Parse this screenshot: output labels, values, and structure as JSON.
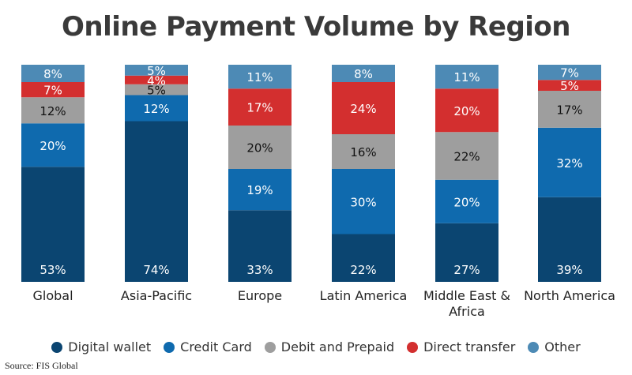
{
  "chart_data": {
    "type": "bar",
    "stacked": true,
    "title": "Online Payment Volume by Region",
    "categories": [
      "Global",
      "Asia-Pacific",
      "Europe",
      "Latin America",
      "Middle East & Africa",
      "North America"
    ],
    "series": [
      {
        "name": "Digital wallet",
        "color": "#0b4571",
        "values": [
          53,
          74,
          33,
          22,
          27,
          39
        ]
      },
      {
        "name": "Credit Card",
        "color": "#0f6aae",
        "values": [
          20,
          12,
          19,
          30,
          20,
          32
        ]
      },
      {
        "name": "Debit and Prepaid",
        "color": "#9e9e9e",
        "values": [
          12,
          5,
          20,
          16,
          22,
          17
        ]
      },
      {
        "name": "Direct transfer",
        "color": "#d32f2f",
        "values": [
          7,
          4,
          17,
          24,
          20,
          5
        ]
      },
      {
        "name": "Other",
        "color": "#4d8ab5",
        "values": [
          8,
          5,
          11,
          8,
          11,
          7
        ]
      }
    ],
    "value_suffix": "%",
    "ylim": [
      0,
      100
    ],
    "grid": false,
    "legend_position": "bottom"
  },
  "source": "Source: FIS Global"
}
